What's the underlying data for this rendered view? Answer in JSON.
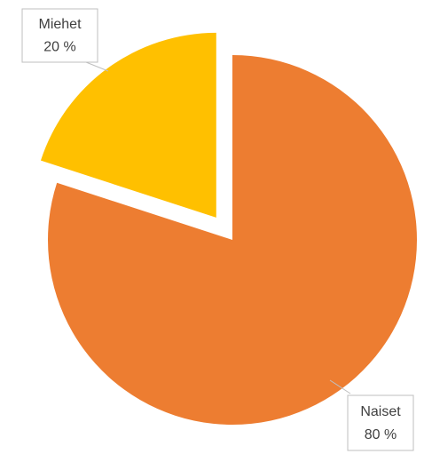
{
  "chart_data": {
    "type": "pie",
    "categories": [
      "Naiset",
      "Miehet"
    ],
    "values": [
      80,
      20
    ],
    "value_labels": [
      "80 %",
      "20 %"
    ],
    "colors": [
      "#ED7D31",
      "#FFC000"
    ],
    "exploded": [
      false,
      true
    ]
  }
}
